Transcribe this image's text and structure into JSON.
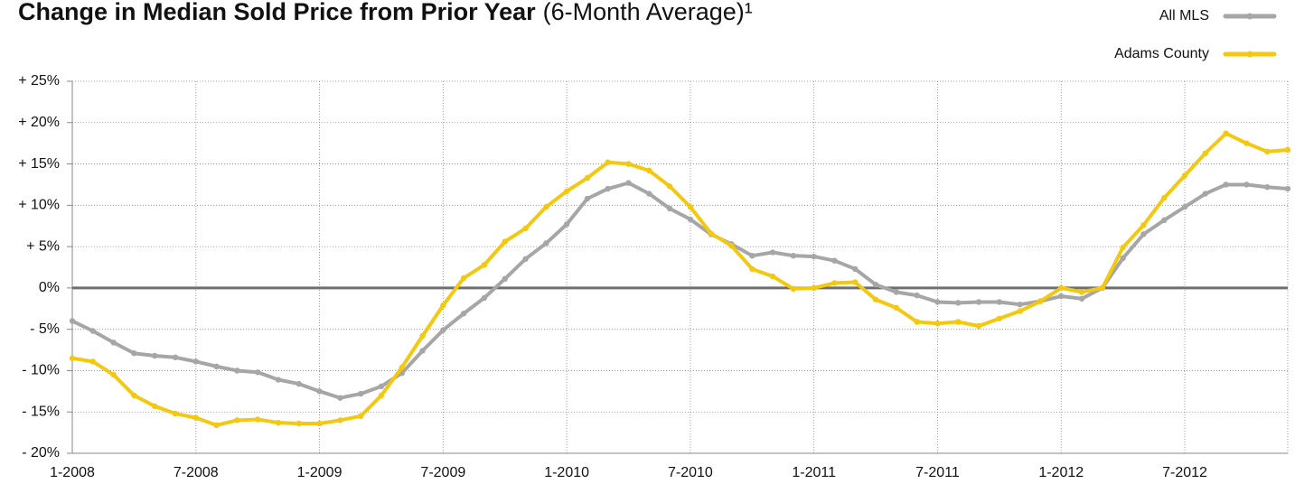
{
  "chart_data": {
    "type": "line",
    "title": "Change in Median Sold Price from Prior Year",
    "subtitle": "(6-Month Average)¹",
    "categories": [
      "1-2008",
      null,
      null,
      null,
      null,
      null,
      "7-2008",
      null,
      null,
      null,
      null,
      null,
      "1-2009",
      null,
      null,
      null,
      null,
      null,
      "7-2009",
      null,
      null,
      null,
      null,
      null,
      "1-2010",
      null,
      null,
      null,
      null,
      null,
      "7-2010",
      null,
      null,
      null,
      null,
      null,
      "1-2011",
      null,
      null,
      null,
      null,
      null,
      "7-2011",
      null,
      null,
      null,
      null,
      null,
      "1-2012",
      null,
      null,
      null,
      null,
      null,
      "7-2012",
      null,
      null,
      null,
      null,
      null
    ],
    "series": [
      {
        "name": "All MLS",
        "color": "#a6a6a6",
        "values": [
          -4,
          -5.2,
          -6.6,
          -7.9,
          -8.2,
          -8.4,
          -8.9,
          -9.5,
          -10,
          -10.2,
          -11.1,
          -11.6,
          -12.5,
          -13.3,
          -12.8,
          -11.9,
          -10.3,
          -7.6,
          -5.1,
          -3.1,
          -1.2,
          1.1,
          3.5,
          5.4,
          7.7,
          10.8,
          12,
          12.7,
          11.4,
          9.6,
          8.3,
          6.5,
          5.3,
          3.9,
          4.3,
          3.9,
          3.8,
          3.3,
          2.3,
          0.4,
          -0.5,
          -0.9,
          -1.7,
          -1.8,
          -1.7,
          -1.7,
          -2,
          -1.6,
          -1,
          -1.3,
          0,
          3.6,
          6.5,
          8.2,
          9.8,
          11.4,
          12.5,
          12.5,
          12.2,
          12
        ]
      },
      {
        "name": "Adams County",
        "color": "#f2c811",
        "values": [
          -8.5,
          -8.9,
          -10.5,
          -13,
          -14.3,
          -15.2,
          -15.7,
          -16.6,
          -16,
          -15.9,
          -16.3,
          -16.4,
          -16.4,
          -16,
          -15.5,
          -13,
          -9.6,
          -5.8,
          -2.1,
          1.2,
          2.8,
          5.6,
          7.2,
          9.8,
          11.7,
          13.3,
          15.2,
          15,
          14.2,
          12.3,
          9.8,
          6.6,
          5.1,
          2.3,
          1.4,
          -0.1,
          0,
          0.6,
          0.7,
          -1.4,
          -2.4,
          -4.1,
          -4.3,
          -4.1,
          -4.6,
          -3.7,
          -2.8,
          -1.6,
          0,
          -0.5,
          0,
          4.9,
          7.6,
          10.9,
          13.6,
          16.3,
          18.7,
          17.5,
          16.5,
          16.7
        ]
      }
    ],
    "ylim": [
      -20,
      25
    ],
    "yticks": [
      {
        "value": -20,
        "label": "- 20%"
      },
      {
        "value": -15,
        "label": "- 15%"
      },
      {
        "value": -10,
        "label": "- 10%"
      },
      {
        "value": -5,
        "label": "- 5%"
      },
      {
        "value": 0,
        "label": "0%"
      },
      {
        "value": 5,
        "label": "+ 5%"
      },
      {
        "value": 10,
        "label": "+ 10%"
      },
      {
        "value": 15,
        "label": "+ 15%"
      },
      {
        "value": 20,
        "label": "+ 20%"
      },
      {
        "value": 25,
        "label": "+ 25%"
      }
    ],
    "grid": true,
    "legend": "top-right"
  }
}
